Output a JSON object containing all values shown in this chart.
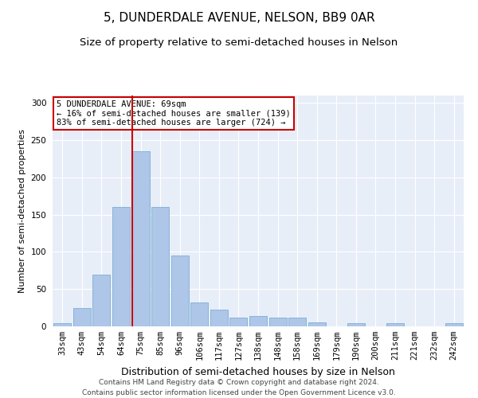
{
  "title": "5, DUNDERDALE AVENUE, NELSON, BB9 0AR",
  "subtitle": "Size of property relative to semi-detached houses in Nelson",
  "xlabel": "Distribution of semi-detached houses by size in Nelson",
  "ylabel": "Number of semi-detached properties",
  "categories": [
    "33sqm",
    "43sqm",
    "54sqm",
    "64sqm",
    "75sqm",
    "85sqm",
    "96sqm",
    "106sqm",
    "117sqm",
    "127sqm",
    "138sqm",
    "148sqm",
    "158sqm",
    "169sqm",
    "179sqm",
    "190sqm",
    "200sqm",
    "211sqm",
    "221sqm",
    "232sqm",
    "242sqm"
  ],
  "values": [
    4,
    25,
    70,
    160,
    235,
    160,
    95,
    32,
    22,
    12,
    14,
    12,
    12,
    5,
    0,
    4,
    0,
    4,
    0,
    0,
    4
  ],
  "bar_color": "#aec6e8",
  "bar_edge_color": "#7aafd4",
  "vline_x_index": 4,
  "vline_color": "#cc0000",
  "annotation_text": "5 DUNDERDALE AVENUE: 69sqm\n← 16% of semi-detached houses are smaller (139)\n83% of semi-detached houses are larger (724) →",
  "annotation_box_color": "#ffffff",
  "annotation_box_edge_color": "#cc0000",
  "footer_text": "Contains HM Land Registry data © Crown copyright and database right 2024.\nContains public sector information licensed under the Open Government Licence v3.0.",
  "background_color": "#e8eef8",
  "ylim": [
    0,
    310
  ],
  "yticks": [
    0,
    50,
    100,
    150,
    200,
    250,
    300
  ],
  "title_fontsize": 11,
  "subtitle_fontsize": 9.5,
  "xlabel_fontsize": 9,
  "ylabel_fontsize": 8,
  "tick_fontsize": 7.5,
  "footer_fontsize": 6.5
}
